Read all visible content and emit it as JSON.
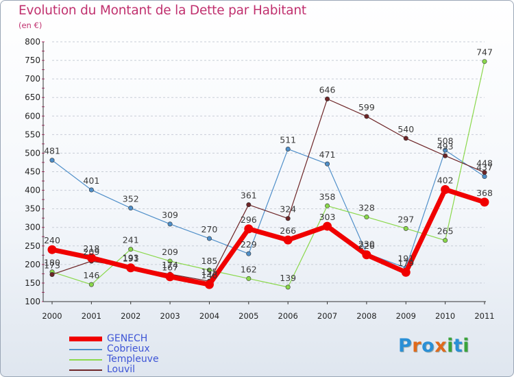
{
  "title": "Evolution du Montant de la Dette par Habitant",
  "unit": "(en €)",
  "logo": {
    "letters": [
      "P",
      "r",
      "o",
      "x",
      "i",
      "t",
      "i"
    ],
    "colors": [
      "#2a8fd6",
      "#e06a1c",
      "#2a8fd6",
      "#e06a1c",
      "#3aa33a",
      "#2a8fd6",
      "#3aa33a"
    ]
  },
  "chart_data": {
    "type": "line",
    "title": "Evolution du Montant de la Dette par Habitant",
    "ylabel": "(en €)",
    "xlabel": "",
    "x": [
      "2000",
      "2001",
      "2002",
      "2003",
      "2004",
      "2005",
      "2006",
      "2007",
      "2008",
      "2009",
      "2010",
      "2011"
    ],
    "ylim": [
      100,
      800
    ],
    "yticks": [
      100,
      150,
      200,
      250,
      300,
      350,
      400,
      450,
      500,
      550,
      600,
      650,
      700,
      750,
      800
    ],
    "grid": "horizontal dashed",
    "legend": "bottom-left",
    "series": [
      {
        "name": "Cobrieux",
        "color": "#4f8fc9",
        "values": [
          481,
          401,
          352,
          309,
          270,
          229,
          511,
          471,
          230,
          191,
          508,
          437
        ]
      },
      {
        "name": "Templeuve",
        "color": "#8ad84b",
        "values": [
          180,
          146,
          241,
          209,
          185,
          162,
          139,
          358,
          328,
          297,
          265,
          747
        ]
      },
      {
        "name": "Louvil",
        "color": "#6d2527",
        "values": [
          173,
          209,
          193,
          174,
          155,
          361,
          324,
          646,
          599,
          540,
          493,
          448
        ]
      },
      {
        "name": "GENECH",
        "color": "#f00000",
        "values": [
          240,
          218,
          191,
          167,
          146,
          296,
          266,
          303,
          226,
          179,
          402,
          368
        ]
      }
    ]
  }
}
